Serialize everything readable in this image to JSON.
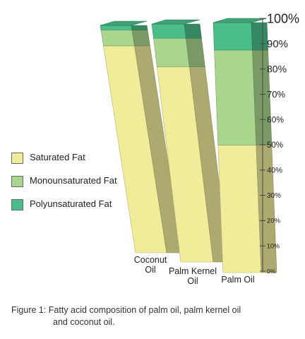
{
  "chart_data": {
    "type": "bar",
    "stacked": true,
    "three_d": true,
    "categories": [
      "Coconut\nOil",
      "Palm Kernel\nOil",
      "Palm Oil"
    ],
    "series": [
      {
        "name": "Saturated Fat",
        "values": [
          91,
          82,
          51
        ],
        "color": "#f0ec9a"
      },
      {
        "name": "Monounsaturated Fat",
        "values": [
          7,
          12,
          38
        ],
        "color": "#a9d68c"
      },
      {
        "name": "Polyunsaturated Fat",
        "values": [
          2,
          6,
          11
        ],
        "color": "#4bbd8a"
      }
    ],
    "yticks": [
      "0%",
      "10%",
      "20%",
      "30%",
      "40%",
      "50%",
      "60%",
      "70%",
      "80%",
      "90%",
      "100%"
    ],
    "ylim": [
      0,
      100
    ],
    "legend_position": "left"
  },
  "caption": {
    "line1": "Figure 1: Fatty acid composition of palm oil, palm kernel oil",
    "line2": "and coconut oil."
  }
}
